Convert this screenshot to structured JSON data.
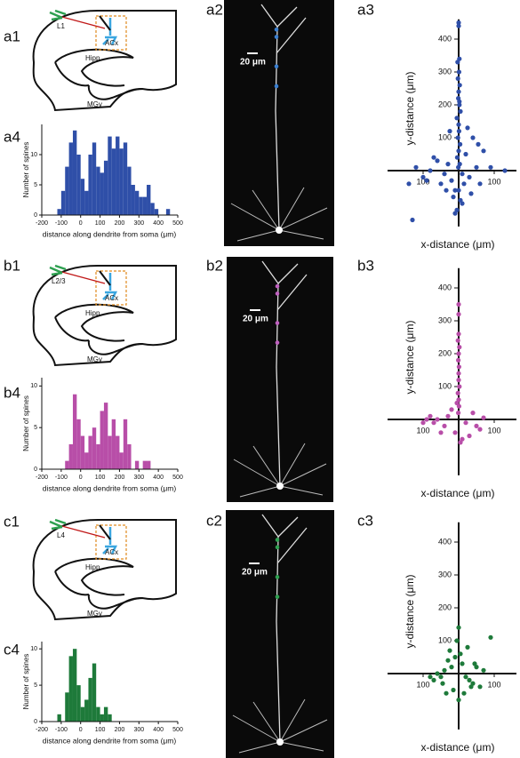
{
  "rows": [
    {
      "diagram": {
        "panel": "a1",
        "layer": "L1",
        "acx": "ACx",
        "hipp": "Hipp",
        "mgv": "MGv"
      },
      "image": {
        "panel": "a2",
        "scale_bar": "20 μm"
      },
      "scatter": {
        "panel": "a3",
        "xlabel": "x-distance (μm)",
        "ylabel": "y-distance (μm)",
        "color": "#2f4fa8",
        "x": [
          0,
          0,
          2,
          -3,
          1,
          -2,
          3,
          0,
          -1,
          2,
          5,
          -5,
          0,
          1,
          -2,
          4,
          0,
          -4,
          3,
          -1,
          -120,
          -100,
          -80,
          -60,
          -50,
          -40,
          -30,
          -20,
          -10,
          10,
          20,
          30,
          40,
          50,
          60,
          70,
          -90,
          -70,
          -35,
          -15,
          15,
          35,
          55,
          90,
          130,
          -140,
          -130,
          -25,
          25,
          10,
          -10,
          0,
          5,
          -5,
          2
        ],
        "y": [
          450,
          440,
          340,
          330,
          300,
          280,
          260,
          240,
          220,
          200,
          180,
          160,
          140,
          120,
          100,
          80,
          60,
          40,
          20,
          10,
          10,
          -20,
          0,
          30,
          -40,
          -10,
          20,
          -30,
          -60,
          -10,
          50,
          -20,
          100,
          10,
          -40,
          60,
          -30,
          40,
          -60,
          -80,
          -40,
          -70,
          80,
          10,
          0,
          -40,
          -150,
          120,
          130,
          -100,
          -130,
          -60,
          -90,
          -120,
          210
        ],
        "xlim": [
          -150,
          150
        ],
        "ylim": [
          -170,
          460
        ],
        "yticks": [
          100,
          200,
          300,
          400
        ],
        "xticks": [
          {
            "value": -100,
            "label": "100"
          },
          100
        ]
      },
      "histogram": {
        "panel": "a4",
        "xlabel": "distance along dendrite from soma (μm)",
        "ylabel": "Number of spines",
        "color": "#2f4fa8",
        "bins": [
          -200,
          -180,
          -160,
          -140,
          -120,
          -100,
          -80,
          -60,
          -40,
          -20,
          0,
          20,
          40,
          60,
          80,
          100,
          120,
          140,
          160,
          180,
          200,
          220,
          240,
          260,
          280,
          300,
          320,
          340,
          360,
          380,
          400,
          420,
          440,
          460,
          480,
          500
        ],
        "counts": [
          0,
          0,
          0,
          0,
          1,
          4,
          8,
          12,
          14,
          10,
          6,
          4,
          10,
          12,
          8,
          7,
          9,
          13,
          11,
          13,
          11,
          12,
          8,
          5,
          4,
          3,
          3,
          5,
          2,
          1,
          0,
          0,
          1,
          0,
          0
        ],
        "xlim": [
          -200,
          500
        ],
        "xticks": [
          -200,
          -100,
          0,
          100,
          200,
          300,
          400,
          500
        ],
        "ylim": [
          0,
          15
        ],
        "yticks": [
          0,
          5,
          10
        ]
      }
    },
    {
      "diagram": {
        "panel": "b1",
        "layer": "L2/3",
        "acx": "ACx",
        "hipp": "Hipp",
        "mgv": "MGv"
      },
      "image": {
        "panel": "b2",
        "scale_bar": "20 μm"
      },
      "scatter": {
        "panel": "b3",
        "xlabel": "x-distance (μm)",
        "ylabel": "y-distance (μm)",
        "color": "#b84ea8",
        "x": [
          0,
          0,
          0,
          -2,
          2,
          0,
          -1,
          1,
          0,
          0,
          2,
          -2,
          0,
          1,
          -1,
          -100,
          -80,
          -60,
          -40,
          -20,
          20,
          40,
          60,
          -90,
          -50,
          -30,
          30,
          50,
          10,
          -10,
          -5,
          5,
          -70,
          70
        ],
        "y": [
          350,
          320,
          260,
          240,
          220,
          200,
          180,
          160,
          140,
          120,
          100,
          80,
          60,
          40,
          20,
          -10,
          10,
          0,
          -20,
          30,
          -10,
          20,
          -30,
          0,
          -40,
          10,
          -50,
          -20,
          -60,
          -40,
          50,
          -70,
          -10,
          5
        ],
        "xlim": [
          -150,
          150
        ],
        "ylim": [
          -170,
          460
        ],
        "yticks": [
          100,
          200,
          300,
          400
        ],
        "xticks": [
          {
            "value": -100,
            "label": "100"
          },
          100
        ]
      },
      "histogram": {
        "panel": "b4",
        "xlabel": "distance along dendrite from soma (μm)",
        "ylabel": "Number of spines",
        "color": "#b84ea8",
        "bins": [
          -200,
          -180,
          -160,
          -140,
          -120,
          -100,
          -80,
          -60,
          -40,
          -20,
          0,
          20,
          40,
          60,
          80,
          100,
          120,
          140,
          160,
          180,
          200,
          220,
          240,
          260,
          280,
          300,
          320,
          340,
          360,
          380,
          400,
          420,
          440,
          460,
          480,
          500
        ],
        "counts": [
          0,
          0,
          0,
          0,
          0,
          0,
          1,
          3,
          9,
          6,
          4,
          2,
          4,
          5,
          3,
          7,
          8,
          4,
          6,
          4,
          2,
          6,
          3,
          0,
          1,
          0,
          1,
          1,
          0,
          0,
          0,
          0,
          0,
          0,
          0
        ],
        "xlim": [
          -200,
          500
        ],
        "xticks": [
          -200,
          -100,
          0,
          100,
          200,
          300,
          400,
          500
        ],
        "ylim": [
          0,
          11
        ],
        "yticks": [
          0,
          5,
          10
        ]
      }
    },
    {
      "diagram": {
        "panel": "c1",
        "layer": "L4",
        "acx": "ACx",
        "hipp": "Hipp",
        "mgv": "MGv"
      },
      "image": {
        "panel": "c2",
        "scale_bar": "20 μm"
      },
      "scatter": {
        "panel": "c3",
        "xlabel": "x-distance (μm)",
        "ylabel": "y-distance (μm)",
        "color": "#1e7a3a",
        "x": [
          0,
          -5,
          5,
          -10,
          10,
          -20,
          20,
          -30,
          30,
          -40,
          40,
          -50,
          50,
          -60,
          60,
          -70,
          70,
          -80,
          90,
          -15,
          15,
          25,
          -25,
          35,
          -35,
          0,
          45,
          -45
        ],
        "y": [
          140,
          100,
          60,
          50,
          30,
          20,
          -10,
          40,
          -20,
          10,
          -30,
          -10,
          20,
          0,
          -40,
          -20,
          10,
          -10,
          110,
          -50,
          -60,
          80,
          70,
          -40,
          -60,
          -80,
          30,
          -30
        ],
        "xlim": [
          -150,
          150
        ],
        "ylim": [
          -170,
          460
        ],
        "yticks": [
          100,
          200,
          300,
          400
        ],
        "xticks": [
          {
            "value": -100,
            "label": "100"
          },
          100
        ]
      },
      "histogram": {
        "panel": "c4",
        "xlabel": "distance along dendrite from soma (μm)",
        "ylabel": "Number of spines",
        "color": "#1e7a3a",
        "bins": [
          -200,
          -180,
          -160,
          -140,
          -120,
          -100,
          -80,
          -60,
          -40,
          -20,
          0,
          20,
          40,
          60,
          80,
          100,
          120,
          140,
          160,
          180,
          200,
          220,
          240,
          260,
          280,
          300,
          320,
          340,
          360,
          380,
          400,
          420,
          440,
          460,
          480,
          500
        ],
        "counts": [
          0,
          0,
          0,
          0,
          1,
          0,
          4,
          9,
          10,
          5,
          2,
          3,
          6,
          8,
          2,
          1,
          2,
          1,
          0,
          0,
          0,
          0,
          0,
          0,
          0,
          0,
          0,
          0,
          0,
          0,
          0,
          0,
          0,
          0,
          0
        ],
        "xlim": [
          -200,
          500
        ],
        "xticks": [
          -200,
          -100,
          0,
          100,
          200,
          300,
          400,
          500
        ],
        "ylim": [
          0,
          11
        ],
        "yticks": [
          0,
          5,
          10
        ]
      }
    }
  ]
}
